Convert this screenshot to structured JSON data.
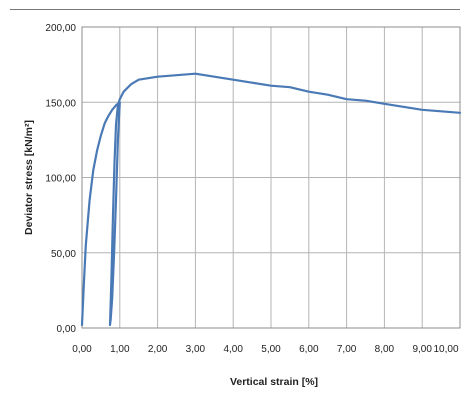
{
  "chart_data": {
    "type": "line",
    "title": "",
    "xlabel": "Vertical strain  [%]",
    "ylabel": "Deviator stress [kN/m²]",
    "xlim": [
      0,
      10
    ],
    "ylim": [
      0,
      200
    ],
    "grid": true,
    "x_ticks": [
      0,
      1,
      2,
      3,
      4,
      5,
      6,
      7,
      8,
      9,
      10
    ],
    "x_tick_labels": [
      "0,00",
      "1,00",
      "2,00",
      "3,00",
      "4,00",
      "5,00",
      "6,00",
      "7,00",
      "8,00",
      "9,00",
      "10,00"
    ],
    "y_ticks": [
      0,
      50,
      100,
      150,
      200
    ],
    "y_tick_labels": [
      "0,00",
      "50,00",
      "100,00",
      "150,00",
      "200,00"
    ],
    "colors": {
      "series": "#4a7ab5",
      "grid": "#b4b4b4",
      "frame": "#8c8c8c"
    },
    "series": [
      {
        "name": "",
        "x": [
          0.0,
          0.05,
          0.1,
          0.2,
          0.3,
          0.4,
          0.5,
          0.6,
          0.7,
          0.8,
          0.9,
          1.0,
          0.95,
          0.9,
          0.85,
          0.8,
          0.76,
          0.74,
          0.75,
          0.78,
          0.82,
          0.86,
          0.9,
          0.95,
          1.0,
          1.1,
          1.3,
          1.5,
          2.0,
          2.5,
          3.0,
          3.5,
          4.0,
          4.5,
          5.0,
          5.5,
          6.0,
          6.5,
          7.0,
          7.5,
          8.0,
          8.5,
          9.0,
          9.5,
          10.0
        ],
        "y": [
          2,
          30,
          55,
          85,
          105,
          118,
          128,
          136,
          141,
          145,
          148,
          150,
          125,
          85,
          50,
          20,
          6,
          2,
          8,
          35,
          75,
          110,
          135,
          148,
          152,
          157,
          162,
          165,
          167,
          168,
          169,
          167,
          165,
          163,
          161,
          160,
          157,
          155,
          152,
          151,
          149,
          147,
          145,
          144,
          143
        ]
      }
    ]
  }
}
